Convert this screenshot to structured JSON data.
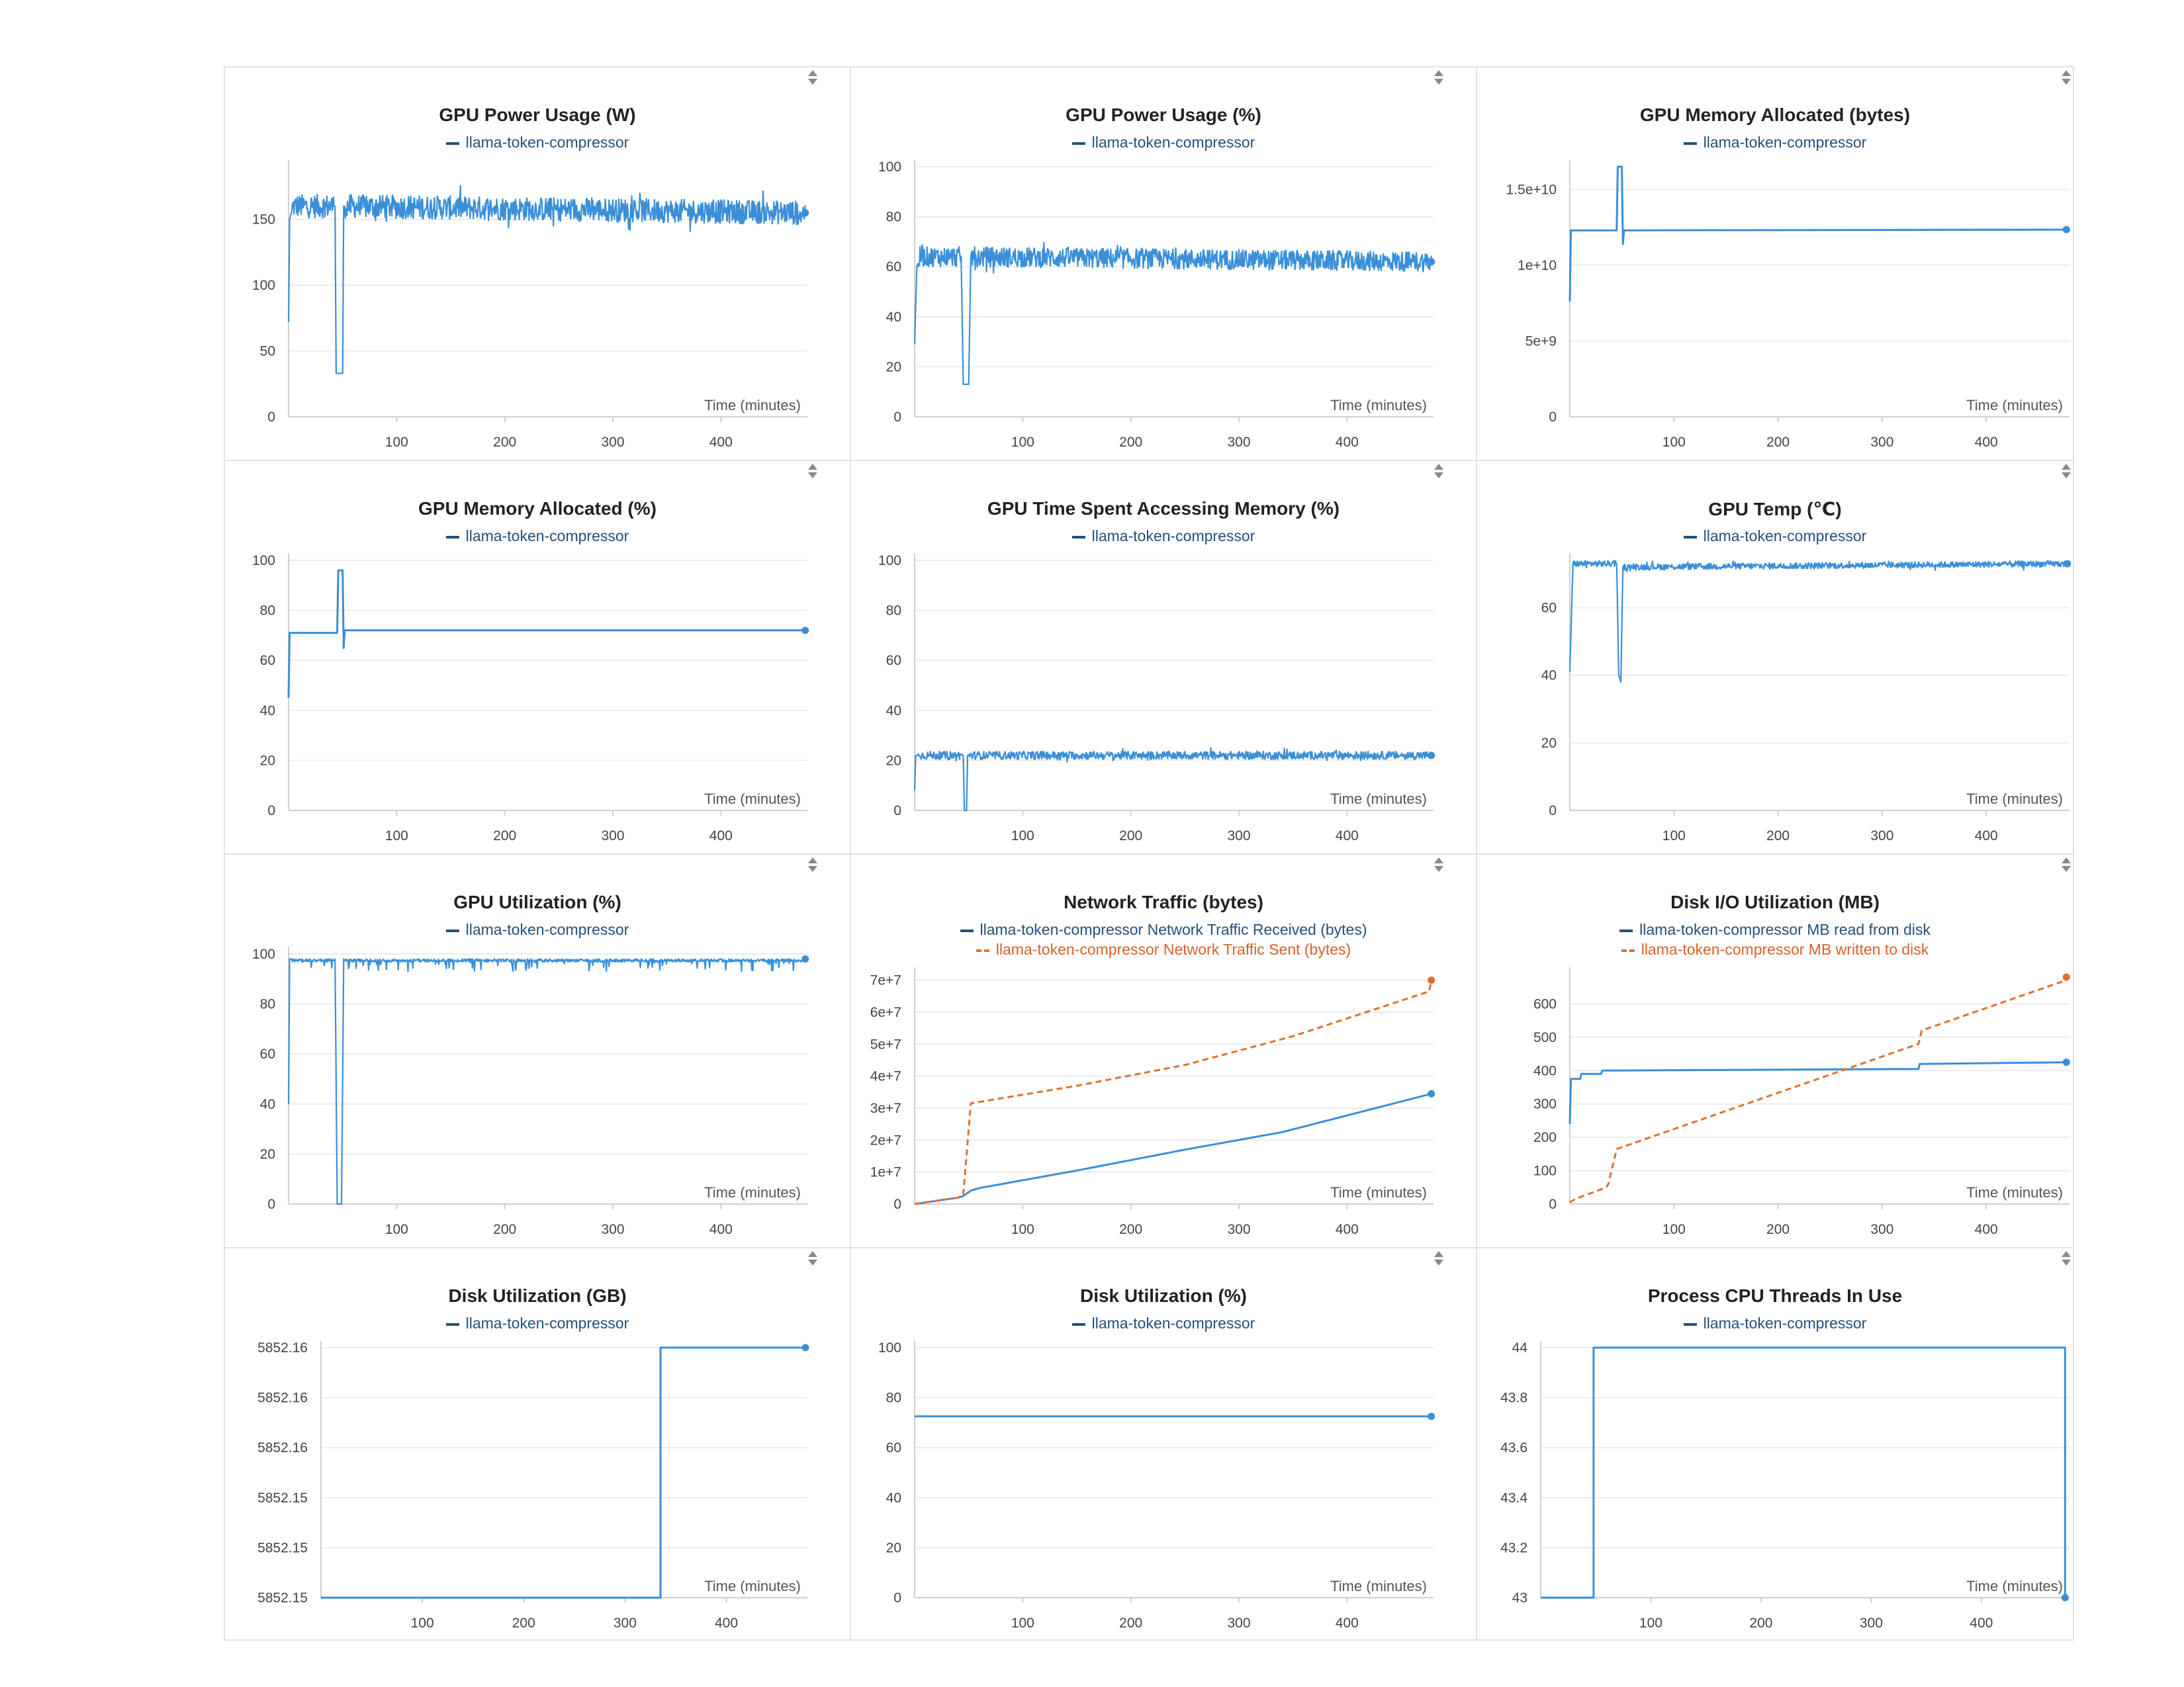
{
  "colors": {
    "blue": "#3a8fd8",
    "orange": "#e0702e",
    "grid": "#ececec",
    "axis": "#cfcfcf",
    "legend_blue": "#24507a",
    "legend_orange": "#d4622a"
  },
  "icons": {
    "legend_sort": "sort-arrows-icon"
  },
  "chart_data": [
    {
      "title": "GPU Power Usage (W)",
      "type": "line",
      "xlabel": "Time (minutes)",
      "xlim": [
        0,
        480
      ],
      "xticks": [
        100,
        200,
        300,
        400
      ],
      "ylim": [
        0,
        190
      ],
      "yticks": [
        0,
        50,
        100,
        150
      ],
      "ytick_labels": [
        "0",
        "50",
        "100",
        "150"
      ],
      "series": [
        {
          "name": "llama-token-compressor",
          "style": "noisy",
          "base": 160,
          "amp": 9,
          "points": [
            [
              0,
              72
            ],
            [
              1,
              150
            ],
            [
              4,
              160
            ],
            [
              43,
              160
            ],
            [
              44,
              33
            ],
            [
              50,
              33
            ],
            [
              51,
              160
            ],
            [
              478,
              155
            ]
          ]
        }
      ]
    },
    {
      "title": "GPU Power Usage (%)",
      "type": "line",
      "xlabel": "Time (minutes)",
      "xlim": [
        0,
        480
      ],
      "xticks": [
        100,
        200,
        300,
        400
      ],
      "ylim": [
        0,
        100
      ],
      "yticks": [
        0,
        20,
        40,
        60,
        80,
        100
      ],
      "ytick_labels": [
        "0",
        "20",
        "40",
        "60",
        "80",
        "100"
      ],
      "series": [
        {
          "name": "llama-token-compressor",
          "style": "noisy",
          "base": 64,
          "amp": 4,
          "points": [
            [
              0,
              29
            ],
            [
              2,
              60
            ],
            [
              5,
              64
            ],
            [
              43,
              64
            ],
            [
              45,
              13
            ],
            [
              50,
              13
            ],
            [
              52,
              64
            ],
            [
              478,
              62
            ]
          ]
        }
      ]
    },
    {
      "title": "GPU Memory Allocated (bytes)",
      "type": "line",
      "xlabel": "Time (minutes)",
      "xlim": [
        0,
        480
      ],
      "xticks": [
        100,
        200,
        300,
        400
      ],
      "ylim": [
        0,
        16500000000
      ],
      "yticks": [
        0,
        5000000000,
        10000000000,
        15000000000
      ],
      "ytick_labels": [
        "0",
        "5e+9",
        "1e+10",
        "1.5e+10"
      ],
      "series": [
        {
          "name": "llama-token-compressor",
          "style": "steps",
          "points": [
            [
              0,
              7600000000
            ],
            [
              1,
              12300000000
            ],
            [
              45,
              12300000000
            ],
            [
              46,
              16500000000
            ],
            [
              50,
              16500000000
            ],
            [
              51,
              11400000000
            ],
            [
              52,
              12300000000
            ],
            [
              477,
              12350000000
            ]
          ]
        }
      ]
    },
    {
      "title": "GPU Memory Allocated (%)",
      "type": "line",
      "xlabel": "Time (minutes)",
      "xlim": [
        0,
        480
      ],
      "xticks": [
        100,
        200,
        300,
        400
      ],
      "ylim": [
        0,
        100
      ],
      "yticks": [
        0,
        20,
        40,
        60,
        80,
        100
      ],
      "ytick_labels": [
        "0",
        "20",
        "40",
        "60",
        "80",
        "100"
      ],
      "series": [
        {
          "name": "llama-token-compressor",
          "style": "steps",
          "points": [
            [
              0,
              45
            ],
            [
              1,
              71
            ],
            [
              45,
              71
            ],
            [
              46,
              96
            ],
            [
              50,
              96
            ],
            [
              51,
              65
            ],
            [
              52,
              72
            ],
            [
              478,
              72
            ]
          ]
        }
      ]
    },
    {
      "title": "GPU Time Spent Accessing Memory (%)",
      "type": "line",
      "xlabel": "Time (minutes)",
      "xlim": [
        0,
        480
      ],
      "xticks": [
        100,
        200,
        300,
        400
      ],
      "ylim": [
        0,
        100
      ],
      "yticks": [
        0,
        20,
        40,
        60,
        80,
        100
      ],
      "ytick_labels": [
        "0",
        "20",
        "40",
        "60",
        "80",
        "100"
      ],
      "series": [
        {
          "name": "llama-token-compressor",
          "style": "noisy",
          "base": 22,
          "amp": 1.6,
          "points": [
            [
              0,
              8
            ],
            [
              1,
              22
            ],
            [
              45,
              22
            ],
            [
              46,
              0
            ],
            [
              48,
              0
            ],
            [
              49,
              22
            ],
            [
              478,
              22
            ]
          ]
        }
      ]
    },
    {
      "title": "GPU Temp (℃)",
      "type": "line",
      "xlabel": "Time (minutes)",
      "xlim": [
        0,
        480
      ],
      "xticks": [
        100,
        200,
        300,
        400
      ],
      "ylim": [
        0,
        74
      ],
      "yticks": [
        0,
        20,
        40,
        60
      ],
      "ytick_labels": [
        "0",
        "20",
        "40",
        "60"
      ],
      "series": [
        {
          "name": "llama-token-compressor",
          "style": "noisy",
          "base": 73,
          "amp": 0.9,
          "points": [
            [
              0,
              41
            ],
            [
              3,
              73
            ],
            [
              45,
              73
            ],
            [
              47,
              40
            ],
            [
              49,
              38
            ],
            [
              51,
              72
            ],
            [
              478,
              73
            ]
          ]
        }
      ]
    },
    {
      "title": "GPU Utilization (%)",
      "type": "line",
      "xlabel": "Time (minutes)",
      "xlim": [
        0,
        480
      ],
      "xticks": [
        100,
        200,
        300,
        400
      ],
      "ylim": [
        0,
        100
      ],
      "yticks": [
        0,
        20,
        40,
        60,
        80,
        100
      ],
      "ytick_labels": [
        "0",
        "20",
        "40",
        "60",
        "80",
        "100"
      ],
      "series": [
        {
          "name": "llama-token-compressor",
          "style": "util",
          "base": 98,
          "points": [
            [
              0,
              40
            ],
            [
              1,
              98
            ],
            [
              43,
              98
            ],
            [
              45,
              0
            ],
            [
              49,
              0
            ],
            [
              51,
              98
            ],
            [
              478,
              98
            ]
          ]
        }
      ]
    },
    {
      "title": "Network Traffic (bytes)",
      "type": "line",
      "xlabel": "Time (minutes)",
      "xlim": [
        0,
        480
      ],
      "xticks": [
        100,
        200,
        300,
        400
      ],
      "ylim": [
        0,
        72000000
      ],
      "yticks": [
        0,
        10000000,
        20000000,
        30000000,
        40000000,
        50000000,
        60000000,
        70000000
      ],
      "ytick_labels": [
        "0",
        "1e+7",
        "2e+7",
        "3e+7",
        "4e+7",
        "5e+7",
        "6e+7",
        "7e+7"
      ],
      "series": [
        {
          "name": "llama-token-compressor Network Traffic Received (bytes)",
          "style": "steps",
          "points": [
            [
              0,
              0
            ],
            [
              40,
              2000000
            ],
            [
              45,
              2500000
            ],
            [
              52,
              4200000
            ],
            [
              60,
              5000000
            ],
            [
              150,
              10500000
            ],
            [
              250,
              17000000
            ],
            [
              340,
              22500000
            ],
            [
              478,
              34500000
            ]
          ]
        },
        {
          "name": "llama-token-compressor Network Traffic Sent (bytes)",
          "style": "steps",
          "dashed": true,
          "points": [
            [
              0,
              0
            ],
            [
              40,
              2000000
            ],
            [
              45,
              3000000
            ],
            [
              52,
              31500000
            ],
            [
              150,
              37000000
            ],
            [
              250,
              43500000
            ],
            [
              350,
              52500000
            ],
            [
              476,
              66500000
            ],
            [
              478,
              70000000
            ]
          ]
        }
      ]
    },
    {
      "title": "Disk I/O Utilization (MB)",
      "type": "line",
      "xlabel": "Time (minutes)",
      "xlim": [
        0,
        480
      ],
      "xticks": [
        100,
        200,
        300,
        400
      ],
      "ylim": [
        0,
        690
      ],
      "yticks": [
        0,
        100,
        200,
        300,
        400,
        500,
        600
      ],
      "ytick_labels": [
        "0",
        "100",
        "200",
        "300",
        "400",
        "500",
        "600"
      ],
      "series": [
        {
          "name": "llama-token-compressor MB read from disk",
          "style": "steps",
          "points": [
            [
              0,
              240
            ],
            [
              1,
              375
            ],
            [
              10,
              375
            ],
            [
              11,
              390
            ],
            [
              30,
              390
            ],
            [
              31,
              400
            ],
            [
              335,
              405
            ],
            [
              336,
              420
            ],
            [
              477,
              425
            ]
          ]
        },
        {
          "name": "llama-token-compressor MB written to disk",
          "style": "steps",
          "dashed": true,
          "points": [
            [
              0,
              5
            ],
            [
              5,
              15
            ],
            [
              35,
              50
            ],
            [
              37,
              60
            ],
            [
              45,
              165
            ],
            [
              335,
              480
            ],
            [
              338,
              520
            ],
            [
              476,
              670
            ],
            [
              477,
              680
            ]
          ]
        }
      ]
    },
    {
      "title": "Disk Utilization (GB)",
      "type": "line",
      "xlabel": "Time (minutes)",
      "xlim": [
        0,
        480
      ],
      "xticks": [
        100,
        200,
        300,
        400
      ],
      "ylim": [
        5852.1495,
        5852.1595
      ],
      "yticks": [
        5852.1495,
        5852.1515,
        5852.1535,
        5852.1555,
        5852.1575,
        5852.1595
      ],
      "ytick_labels": [
        "5852.15",
        "5852.15",
        "5852.15",
        "5852.16",
        "5852.16",
        "5852.16"
      ],
      "series": [
        {
          "name": "llama-token-compressor",
          "style": "steps",
          "points": [
            [
              0,
              5852.1495
            ],
            [
              335,
              5852.1495
            ],
            [
              335,
              5852.1595
            ],
            [
              478,
              5852.1595
            ]
          ]
        }
      ]
    },
    {
      "title": "Disk Utilization (%)",
      "type": "line",
      "xlabel": "Time (minutes)",
      "xlim": [
        0,
        480
      ],
      "xticks": [
        100,
        200,
        300,
        400
      ],
      "ylim": [
        0,
        100
      ],
      "yticks": [
        0,
        20,
        40,
        60,
        80,
        100
      ],
      "ytick_labels": [
        "0",
        "20",
        "40",
        "60",
        "80",
        "100"
      ],
      "series": [
        {
          "name": "llama-token-compressor",
          "style": "steps",
          "points": [
            [
              0,
              72.5
            ],
            [
              478,
              72.5
            ]
          ]
        }
      ]
    },
    {
      "title": "Process CPU Threads In Use",
      "type": "line",
      "xlabel": "Time (minutes)",
      "xlim": [
        0,
        480
      ],
      "xticks": [
        100,
        200,
        300,
        400
      ],
      "ylim": [
        43,
        44
      ],
      "yticks": [
        43,
        43.2,
        43.4,
        43.6,
        43.8,
        44
      ],
      "ytick_labels": [
        "43",
        "43.2",
        "43.4",
        "43.6",
        "43.8",
        "44"
      ],
      "series": [
        {
          "name": "llama-token-compressor",
          "style": "steps",
          "points": [
            [
              0,
              43
            ],
            [
              48,
              43
            ],
            [
              48,
              44
            ],
            [
              476,
              44
            ],
            [
              476,
              43
            ]
          ]
        }
      ]
    }
  ]
}
